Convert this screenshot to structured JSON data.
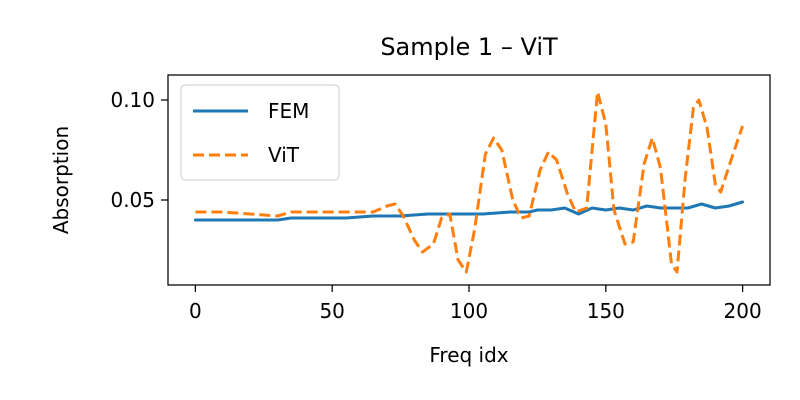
{
  "chart_data": {
    "type": "line",
    "title": "Sample 1 – ViT",
    "xlabel": "Freq idx",
    "ylabel": "Absorption",
    "xlim": [
      -10,
      210
    ],
    "ylim": [
      0.0075,
      0.1125
    ],
    "xticks": [
      0,
      50,
      100,
      150,
      200
    ],
    "xtick_labels": [
      "0",
      "50",
      "100",
      "150",
      "200"
    ],
    "yticks": [
      0.05,
      0.1
    ],
    "ytick_labels": [
      "0.05",
      "0.10"
    ],
    "grid": false,
    "legend_position": "top-left",
    "series": [
      {
        "name": "FEM",
        "color": "#1f77b4",
        "dash": "solid",
        "points": [
          [
            0,
            0.04
          ],
          [
            10,
            0.04
          ],
          [
            20,
            0.04
          ],
          [
            30,
            0.04
          ],
          [
            35,
            0.041
          ],
          [
            45,
            0.041
          ],
          [
            55,
            0.041
          ],
          [
            65,
            0.042
          ],
          [
            75,
            0.042
          ],
          [
            85,
            0.043
          ],
          [
            95,
            0.043
          ],
          [
            105,
            0.043
          ],
          [
            115,
            0.044
          ],
          [
            122,
            0.044
          ],
          [
            125,
            0.045
          ],
          [
            130,
            0.045
          ],
          [
            135,
            0.046
          ],
          [
            140,
            0.043
          ],
          [
            145,
            0.046
          ],
          [
            150,
            0.045
          ],
          [
            155,
            0.046
          ],
          [
            160,
            0.045
          ],
          [
            165,
            0.047
          ],
          [
            170,
            0.046
          ],
          [
            175,
            0.046
          ],
          [
            180,
            0.046
          ],
          [
            185,
            0.048
          ],
          [
            190,
            0.046
          ],
          [
            195,
            0.047
          ],
          [
            200,
            0.049
          ]
        ]
      },
      {
        "name": "ViT",
        "color": "#ff7f0e",
        "dash": "dashed",
        "points": [
          [
            0,
            0.044
          ],
          [
            10,
            0.044
          ],
          [
            20,
            0.043
          ],
          [
            30,
            0.042
          ],
          [
            35,
            0.044
          ],
          [
            45,
            0.044
          ],
          [
            55,
            0.044
          ],
          [
            65,
            0.044
          ],
          [
            70,
            0.047
          ],
          [
            73,
            0.048
          ],
          [
            76,
            0.042
          ],
          [
            80,
            0.03
          ],
          [
            83,
            0.024
          ],
          [
            87,
            0.028
          ],
          [
            90,
            0.041
          ],
          [
            93,
            0.043
          ],
          [
            96,
            0.02
          ],
          [
            99,
            0.014
          ],
          [
            102,
            0.035
          ],
          [
            106,
            0.073
          ],
          [
            109,
            0.081
          ],
          [
            112,
            0.075
          ],
          [
            116,
            0.05
          ],
          [
            119,
            0.041
          ],
          [
            122,
            0.042
          ],
          [
            126,
            0.065
          ],
          [
            129,
            0.074
          ],
          [
            132,
            0.07
          ],
          [
            136,
            0.053
          ],
          [
            139,
            0.044
          ],
          [
            143,
            0.046
          ],
          [
            146,
            0.09
          ],
          [
            147,
            0.104
          ],
          [
            150,
            0.088
          ],
          [
            153,
            0.045
          ],
          [
            157,
            0.028
          ],
          [
            160,
            0.029
          ],
          [
            164,
            0.068
          ],
          [
            167,
            0.081
          ],
          [
            170,
            0.066
          ],
          [
            174,
            0.018
          ],
          [
            176,
            0.014
          ],
          [
            179,
            0.061
          ],
          [
            182,
            0.096
          ],
          [
            184,
            0.1
          ],
          [
            187,
            0.086
          ],
          [
            190,
            0.058
          ],
          [
            192,
            0.054
          ],
          [
            196,
            0.071
          ],
          [
            200,
            0.087
          ]
        ]
      }
    ]
  }
}
